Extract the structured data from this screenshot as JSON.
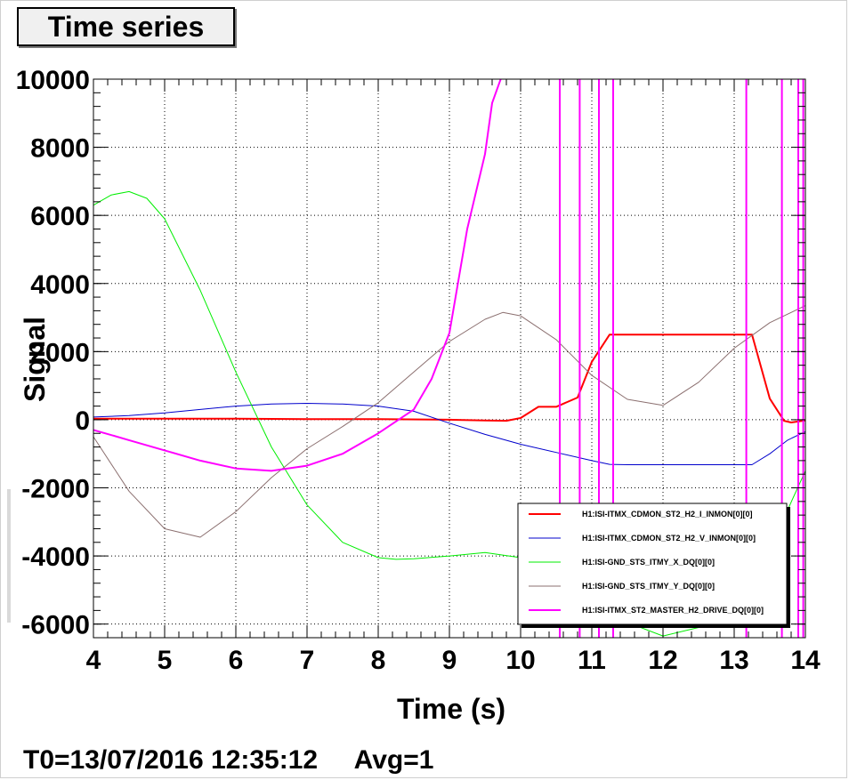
{
  "window": {
    "title_button": "Time series",
    "footer": {
      "t0": "T0=13/07/2016 12:35:12",
      "avg": "Avg=1"
    }
  },
  "chart_data": {
    "type": "line",
    "xlabel": "Time (s)",
    "ylabel": "Signal",
    "xlim": [
      4,
      14
    ],
    "ylim": [
      -6400,
      10000
    ],
    "grid": true,
    "legend_position": "bottom-right",
    "x_ticks": [
      4,
      5,
      6,
      7,
      8,
      9,
      10,
      11,
      12,
      13,
      14
    ],
    "y_ticks": [
      -6000,
      -4000,
      -2000,
      0,
      2000,
      4000,
      6000,
      8000,
      10000
    ],
    "series": [
      {
        "name": "H1:ISI-ITMX_CDMON_ST2_H2_I_INMON[0][0]",
        "color": "#ff0000",
        "width": 2,
        "x": [
          4,
          5,
          6,
          7,
          8,
          9,
          9.5,
          9.8,
          10,
          10.25,
          10.5,
          10.8,
          11,
          11.25,
          11.5,
          12,
          12.5,
          13,
          13.25,
          13.5,
          13.7,
          13.8,
          14
        ],
        "y": [
          30,
          30,
          30,
          20,
          20,
          0,
          -20,
          -30,
          50,
          380,
          380,
          650,
          1700,
          2500,
          2500,
          2500,
          2500,
          2500,
          2500,
          620,
          -30,
          -80,
          -20
        ]
      },
      {
        "name": "H1:ISI-ITMX_CDMON_ST2_H2_V_INMON[0][0]",
        "color": "#0000cc",
        "width": 1,
        "x": [
          4,
          4.5,
          5,
          5.5,
          6,
          6.5,
          7,
          7.5,
          8,
          8.5,
          9,
          9.5,
          10,
          10.5,
          11,
          11.25,
          11.5,
          12,
          12.5,
          13,
          13.25,
          13.5,
          13.75,
          14
        ],
        "y": [
          80,
          120,
          200,
          300,
          400,
          460,
          480,
          460,
          400,
          250,
          -100,
          -430,
          -720,
          -960,
          -1200,
          -1310,
          -1320,
          -1320,
          -1320,
          -1320,
          -1320,
          -1000,
          -600,
          -350
        ]
      },
      {
        "name": "H1:ISI-GND_STS_ITMY_X_DQ[0][0]",
        "color": "#00ee00",
        "width": 1,
        "x": [
          4,
          4.25,
          4.5,
          4.75,
          5,
          5.5,
          6,
          6.5,
          7,
          7.5,
          8,
          8.25,
          8.5,
          9,
          9.5,
          10,
          10.5,
          11,
          11.5,
          12,
          12.5,
          13,
          13.5,
          14
        ],
        "y": [
          6300,
          6600,
          6700,
          6500,
          5900,
          3800,
          1400,
          -800,
          -2500,
          -3600,
          -4050,
          -4100,
          -4080,
          -4000,
          -3900,
          -4050,
          -4500,
          -5300,
          -5950,
          -6350,
          -6100,
          -5400,
          -3800,
          -1500
        ]
      },
      {
        "name": "H1:ISI-GND_STS_ITMY_Y_DQ[0][0]",
        "color": "#8b6f6f",
        "width": 1,
        "x": [
          4,
          4.5,
          5,
          5.5,
          6,
          6.5,
          7,
          7.5,
          8,
          8.5,
          9,
          9.5,
          9.75,
          10,
          10.5,
          11,
          11.5,
          12,
          12.5,
          13,
          13.5,
          14
        ],
        "y": [
          -500,
          -2100,
          -3200,
          -3450,
          -2700,
          -1700,
          -850,
          -200,
          500,
          1400,
          2300,
          2950,
          3150,
          3050,
          2350,
          1300,
          600,
          420,
          1100,
          2100,
          2850,
          3350
        ]
      },
      {
        "name": "H1:ISI-ITMX_ST2_MASTER_H2_DRIVE_DQ[0][0]",
        "color": "#ff00ff",
        "width": 2,
        "x": [
          4,
          4.5,
          5,
          5.5,
          6,
          6.5,
          7,
          7.5,
          8,
          8.5,
          8.75,
          9,
          9.25,
          9.5,
          9.6,
          9.72
        ],
        "y": [
          -300,
          -600,
          -900,
          -1200,
          -1430,
          -1500,
          -1350,
          -1000,
          -400,
          300,
          1200,
          2550,
          5600,
          7800,
          9300,
          10000
        ],
        "spikes_x": [
          10.55,
          10.83,
          11.1,
          11.3,
          13.17,
          13.67,
          13.9,
          13.97
        ]
      }
    ]
  }
}
